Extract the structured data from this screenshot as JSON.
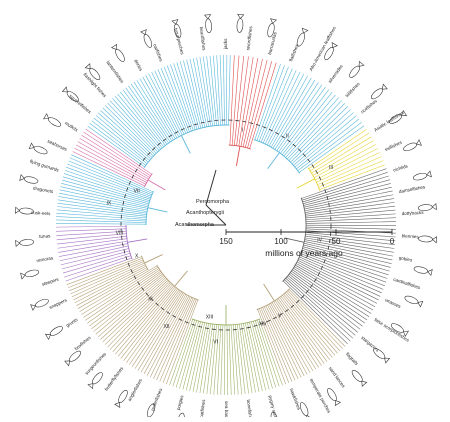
{
  "colors": {
    "background": "#ffffff",
    "blue_clade": "#5bb8dc",
    "tan_clade": "#b7a27a",
    "green_clade": "#9fb46d",
    "yellow_clade": "#e8d63a",
    "pink_clade": "#d970a8",
    "purple_clade": "#a774c4",
    "red_clade": "#e05050",
    "grey_clade": "#666666",
    "ink": "#222222"
  },
  "scale_bar": {
    "ticks": [
      "150",
      "100",
      "50",
      "0"
    ],
    "caption": "millions of years ago"
  },
  "clade_labels": {
    "percomorpha": "Percomorpha",
    "acanthopterygii": "Acanthopterygii",
    "acanthomorpha": "Acanthomorpha"
  },
  "roman_numerals": [
    "I",
    "II",
    "III",
    "IV",
    "V",
    "VI",
    "VII",
    "VIII",
    "IX",
    "X",
    "XI",
    "XII",
    "XIII",
    "XIV"
  ],
  "taxon_labels": [
    "jacks",
    "swordfishes",
    "barracudas",
    "flatfishes",
    "Afro-American leaffishes",
    "silversides",
    "killifishes",
    "ricefishes",
    "Asiatic leaffishes",
    "eelfishes",
    "cichlids",
    "damselfishes",
    "dottybacks",
    "blennies",
    "gobies",
    "cardinalfishes",
    "wrasses",
    "false scorpionfishes",
    "stargazers",
    "flagtails",
    "sand lances",
    "temperate perches",
    "hawkfishes",
    "pygmy sunfishes",
    "bonefishes",
    "sea basses",
    "goatfishes",
    "porgies",
    "pufferfishes",
    "anglerfishes",
    "butterflyfishes",
    "surgeonfishes",
    "boxfishes",
    "grunts",
    "snappers",
    "sleepers",
    "remoras",
    "tunas",
    "cusk-eels",
    "dragonets",
    "flying gurnards",
    "seahorses",
    "mullets",
    "squirrelfishes",
    "flashlight fishes",
    "lanternfishes",
    "dories",
    "oarfishes",
    "trout-perches",
    "beardfishes"
  ]
}
